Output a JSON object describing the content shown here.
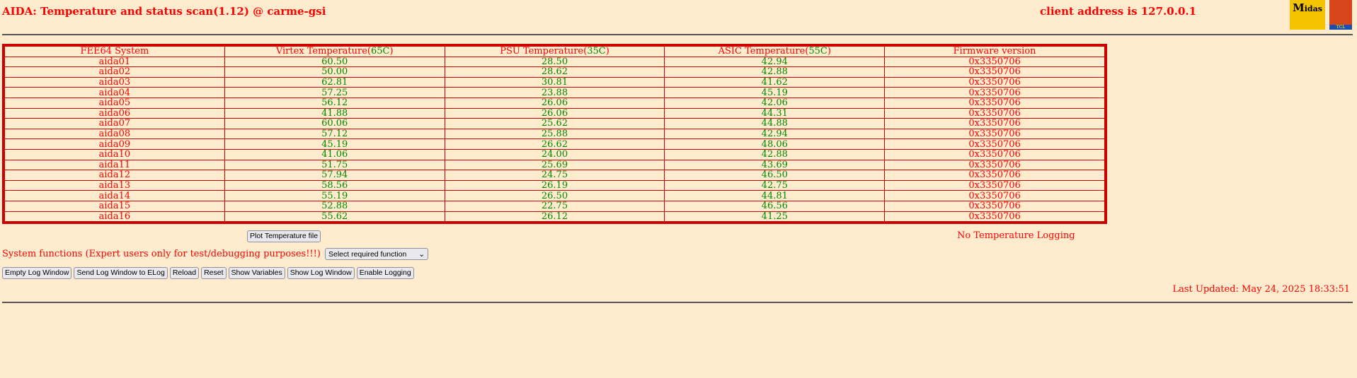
{
  "header": {
    "title": "AIDA: Temperature and status scan(1.12) @ carme-gsi",
    "client": "client address is 127.0.0.1",
    "logo_midas": "Midas",
    "logo_tcl": "TCL POWERED"
  },
  "table": {
    "headers": [
      {
        "text": "FEE64 System"
      },
      {
        "text": "Virtex Temperature(",
        "limit": "65C",
        "close": ")"
      },
      {
        "text": "PSU Temperature(",
        "limit": "35C",
        "close": ")"
      },
      {
        "text": "ASIC Temperature(",
        "limit": "55C",
        "close": ")"
      },
      {
        "text": "Firmware version"
      }
    ],
    "rows": [
      [
        "aida01",
        "60.50",
        "28.50",
        "42.94",
        "0x3350706"
      ],
      [
        "aida02",
        "50.00",
        "28.62",
        "42.88",
        "0x3350706"
      ],
      [
        "aida03",
        "62.81",
        "30.81",
        "41.62",
        "0x3350706"
      ],
      [
        "aida04",
        "57.25",
        "23.88",
        "45.19",
        "0x3350706"
      ],
      [
        "aida05",
        "56.12",
        "26.06",
        "42.06",
        "0x3350706"
      ],
      [
        "aida06",
        "41.88",
        "26.06",
        "44.31",
        "0x3350706"
      ],
      [
        "aida07",
        "60.06",
        "25.62",
        "44.88",
        "0x3350706"
      ],
      [
        "aida08",
        "57.12",
        "25.88",
        "42.94",
        "0x3350706"
      ],
      [
        "aida09",
        "45.19",
        "26.62",
        "48.06",
        "0x3350706"
      ],
      [
        "aida10",
        "41.06",
        "24.00",
        "42.88",
        "0x3350706"
      ],
      [
        "aida11",
        "51.75",
        "25.69",
        "43.69",
        "0x3350706"
      ],
      [
        "aida12",
        "57.94",
        "24.75",
        "46.50",
        "0x3350706"
      ],
      [
        "aida13",
        "58.56",
        "26.19",
        "42.75",
        "0x3350706"
      ],
      [
        "aida14",
        "55.19",
        "26.50",
        "44.81",
        "0x3350706"
      ],
      [
        "aida15",
        "52.88",
        "22.75",
        "46.56",
        "0x3350706"
      ],
      [
        "aida16",
        "55.62",
        "26.12",
        "41.25",
        "0x3350706"
      ]
    ]
  },
  "plot_button": "Plot Temperature file",
  "logging_status": "No Temperature Logging",
  "system_functions": {
    "label": "System functions (Expert users only for test/debugging purposes!!!)",
    "select_value": "Select required function"
  },
  "buttons": [
    "Empty Log Window",
    "Send Log Window to ELog",
    "Reload",
    "Reset",
    "Show Variables",
    "Show Log Window",
    "Enable Logging"
  ],
  "last_updated": "Last Updated: May 24, 2025 18:33:51",
  "colors": {
    "text": "#ff0000",
    "values": "#008800",
    "border": "#cc0000",
    "background": "#ffebcd"
  }
}
